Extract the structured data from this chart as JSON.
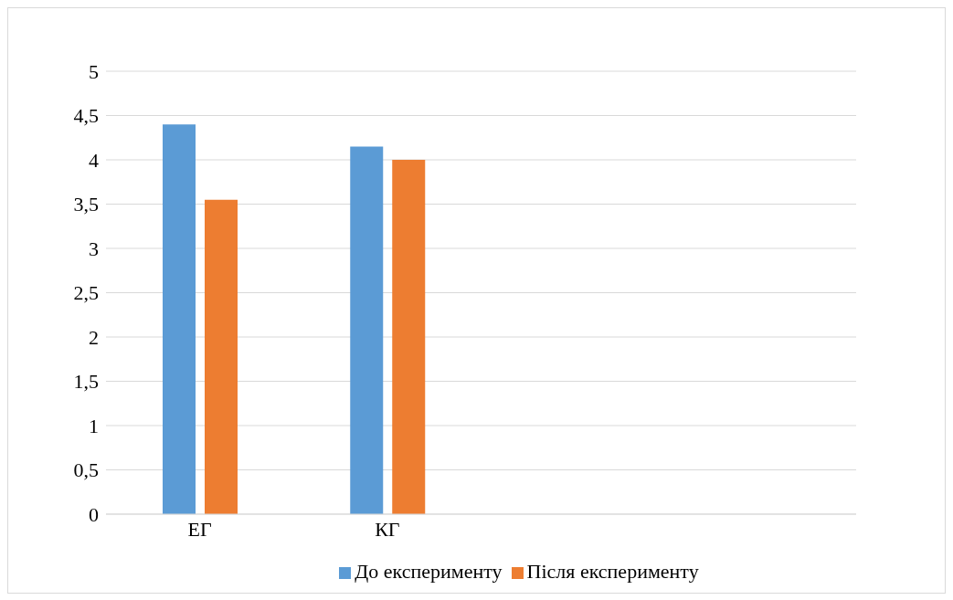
{
  "chart_data": {
    "type": "bar",
    "categories": [
      "ЕГ",
      "КГ",
      null,
      null
    ],
    "series": [
      {
        "name": "До експерименту",
        "color": "#5b9bd5",
        "values": [
          4.4,
          4.15,
          null,
          null
        ]
      },
      {
        "name": "Після експерименту",
        "color": "#ed7d31",
        "values": [
          3.55,
          4.0,
          null,
          null
        ]
      }
    ],
    "ylim": [
      0,
      5
    ],
    "yticks": [
      0,
      {
        "value": 0.5,
        "label": "0,5"
      },
      1,
      {
        "value": 1.5,
        "label": "1,5"
      },
      2,
      {
        "value": 2.5,
        "label": "2,5"
      },
      3,
      {
        "value": 3.5,
        "label": "3,5"
      },
      4,
      {
        "value": 4.5,
        "label": "4,5"
      },
      5
    ],
    "grid": "y",
    "legend": "bottom"
  }
}
